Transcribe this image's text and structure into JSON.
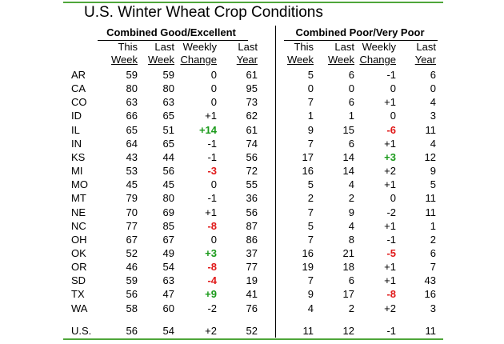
{
  "title": "U.S. Winter Wheat Crop Conditions",
  "groups": {
    "good": "Combined Good/Excellent",
    "poor": "Combined Poor/Very Poor"
  },
  "headers": [
    {
      "top": "This",
      "bottom": "Week"
    },
    {
      "top": "Last",
      "bottom": "Week"
    },
    {
      "top": "Weekly",
      "bottom": "Change"
    },
    {
      "top": "Last",
      "bottom": "Year"
    }
  ],
  "rows": [
    {
      "state": "AR",
      "good": [
        "59",
        "59",
        "0",
        "61"
      ],
      "poor": [
        "5",
        "6",
        "-1",
        "6"
      ]
    },
    {
      "state": "CA",
      "good": [
        "80",
        "80",
        "0",
        "95"
      ],
      "poor": [
        "0",
        "0",
        "0",
        "0"
      ]
    },
    {
      "state": "CO",
      "good": [
        "63",
        "63",
        "0",
        "73"
      ],
      "poor": [
        "7",
        "6",
        "+1",
        "4"
      ]
    },
    {
      "state": "ID",
      "good": [
        "66",
        "65",
        "+1",
        "62"
      ],
      "poor": [
        "1",
        "1",
        "0",
        "3"
      ]
    },
    {
      "state": "IL",
      "good": [
        "65",
        "51",
        "+14",
        "61"
      ],
      "poor": [
        "9",
        "15",
        "-6",
        "11"
      ]
    },
    {
      "state": "IN",
      "good": [
        "64",
        "65",
        "-1",
        "74"
      ],
      "poor": [
        "7",
        "6",
        "+1",
        "4"
      ]
    },
    {
      "state": "KS",
      "good": [
        "43",
        "44",
        "-1",
        "56"
      ],
      "poor": [
        "17",
        "14",
        "+3",
        "12"
      ]
    },
    {
      "state": "MI",
      "good": [
        "53",
        "56",
        "-3",
        "72"
      ],
      "poor": [
        "16",
        "14",
        "+2",
        "9"
      ]
    },
    {
      "state": "MO",
      "good": [
        "45",
        "45",
        "0",
        "55"
      ],
      "poor": [
        "5",
        "4",
        "+1",
        "5"
      ]
    },
    {
      "state": "MT",
      "good": [
        "79",
        "80",
        "-1",
        "36"
      ],
      "poor": [
        "2",
        "2",
        "0",
        "11"
      ]
    },
    {
      "state": "NE",
      "good": [
        "70",
        "69",
        "+1",
        "56"
      ],
      "poor": [
        "7",
        "9",
        "-2",
        "11"
      ]
    },
    {
      "state": "NC",
      "good": [
        "77",
        "85",
        "-8",
        "87"
      ],
      "poor": [
        "5",
        "4",
        "+1",
        "1"
      ]
    },
    {
      "state": "OH",
      "good": [
        "67",
        "67",
        "0",
        "86"
      ],
      "poor": [
        "7",
        "8",
        "-1",
        "2"
      ]
    },
    {
      "state": "OK",
      "good": [
        "52",
        "49",
        "+3",
        "37"
      ],
      "poor": [
        "16",
        "21",
        "-5",
        "6"
      ]
    },
    {
      "state": "OR",
      "good": [
        "46",
        "54",
        "-8",
        "77"
      ],
      "poor": [
        "19",
        "18",
        "+1",
        "7"
      ]
    },
    {
      "state": "SD",
      "good": [
        "59",
        "63",
        "-4",
        "19"
      ],
      "poor": [
        "7",
        "6",
        "+1",
        "43"
      ]
    },
    {
      "state": "TX",
      "good": [
        "56",
        "47",
        "+9",
        "41"
      ],
      "poor": [
        "9",
        "17",
        "-8",
        "16"
      ]
    },
    {
      "state": "WA",
      "good": [
        "58",
        "60",
        "-2",
        "76"
      ],
      "poor": [
        "4",
        "2",
        "+2",
        "3"
      ]
    }
  ],
  "total": {
    "state": "U.S.",
    "good": [
      "56",
      "54",
      "+2",
      "52"
    ],
    "poor": [
      "11",
      "12",
      "-1",
      "11"
    ]
  },
  "highlights": {
    "good": {
      "IL": "pos",
      "MI": "neg",
      "NC": "neg",
      "OK": "pos",
      "OR": "neg",
      "SD": "neg",
      "TX": "pos"
    },
    "poor": {
      "IL": "neg",
      "KS": "pos",
      "OK": "neg",
      "TX": "neg"
    }
  },
  "colors": {
    "positive": "#1a9a1a",
    "negative": "#e01818",
    "rule": "#4fa63a"
  }
}
